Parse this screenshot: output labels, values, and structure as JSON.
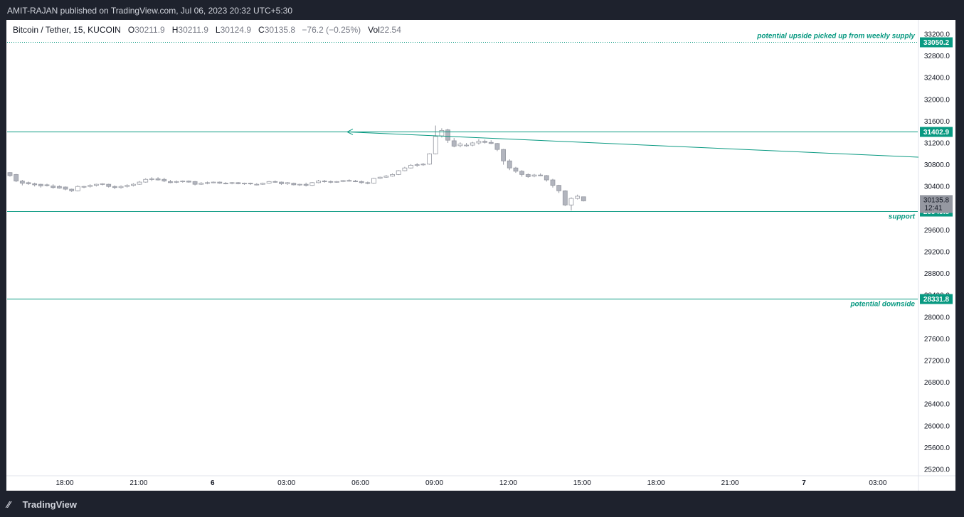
{
  "header": {
    "published": "AMIT-RAJAN published on TradingView.com, Jul 06, 2023 20:32 UTC+5:30"
  },
  "legend": {
    "symbol": "Bitcoin / Tether, 15, KUCOIN",
    "o_label": "O",
    "o_value": "30211.9",
    "h_label": "H",
    "h_value": "30211.9",
    "l_label": "L",
    "l_value": "30124.9",
    "c_label": "C",
    "c_value": "30135.8",
    "change": "−76.2 (−0.25%)",
    "vol_label": "Vol",
    "vol_value": "22.54"
  },
  "footer": {
    "brand": "TradingView"
  },
  "colors": {
    "background": "#1e222d",
    "chart_bg": "#ffffff",
    "line": "#089981",
    "candle": "#b2b5be",
    "candle_dark": "#9598a1",
    "axis_text": "#131722"
  },
  "chart_data": {
    "type": "candlestick",
    "y_range": [
      25000,
      33500
    ],
    "y_ticks": [
      "33200.0",
      "32800.0",
      "32400.0",
      "32000.0",
      "31600.0",
      "31200.0",
      "30800.0",
      "30400.0",
      "30000.0",
      "29600.0",
      "29200.0",
      "28800.0",
      "28400.0",
      "28000.0",
      "27600.0",
      "27200.0",
      "26800.0",
      "26400.0",
      "26000.0",
      "25600.0",
      "25200.0"
    ],
    "x_ticks": [
      "18:00",
      "21:00",
      "6",
      "03:00",
      "06:00",
      "09:00",
      "12:00",
      "15:00",
      "18:00",
      "21:00",
      "7",
      "03:00"
    ],
    "horizontal_levels": [
      {
        "price": 33050.2,
        "label": "33050.2",
        "annotation": "potential upside picked up from weekly supply",
        "style": "dotted"
      },
      {
        "price": 31402.9,
        "label": "31402.9",
        "annotation": "",
        "style": "solid"
      },
      {
        "price": 29949.8,
        "label": "29949.8",
        "annotation": "support",
        "style": "solid"
      },
      {
        "price": 28331.8,
        "label": "28331.8",
        "annotation": "potential downside",
        "style": "solid"
      }
    ],
    "last_price": {
      "price": 30135.8,
      "label": "30135.8",
      "countdown": "12:41"
    },
    "trendline": {
      "annotation": ""
    },
    "candles": [
      [
        30655,
        30660,
        30580,
        30600
      ],
      [
        30620,
        30630,
        30480,
        30500
      ],
      [
        30500,
        30520,
        30420,
        30460
      ],
      [
        30470,
        30490,
        30430,
        30450
      ],
      [
        30450,
        30470,
        30400,
        30430
      ],
      [
        30440,
        30450,
        30380,
        30410
      ],
      [
        30430,
        30450,
        30400,
        30420
      ],
      [
        30410,
        30440,
        30360,
        30380
      ],
      [
        30400,
        30420,
        30360,
        30370
      ],
      [
        30390,
        30400,
        30330,
        30350
      ],
      [
        30350,
        30360,
        30300,
        30320
      ],
      [
        30320,
        30420,
        30310,
        30400
      ],
      [
        30390,
        30410,
        30370,
        30400
      ],
      [
        30400,
        30440,
        30380,
        30420
      ],
      [
        30420,
        30450,
        30400,
        30440
      ],
      [
        30440,
        30460,
        30420,
        30450
      ],
      [
        30440,
        30450,
        30380,
        30400
      ],
      [
        30400,
        30420,
        30350,
        30380
      ],
      [
        30380,
        30420,
        30360,
        30400
      ],
      [
        30400,
        30440,
        30380,
        30420
      ],
      [
        30420,
        30460,
        30400,
        30440
      ],
      [
        30440,
        30500,
        30430,
        30480
      ],
      [
        30480,
        30550,
        30470,
        30530
      ],
      [
        30530,
        30570,
        30500,
        30540
      ],
      [
        30540,
        30570,
        30510,
        30520
      ],
      [
        30530,
        30560,
        30480,
        30500
      ],
      [
        30490,
        30520,
        30460,
        30470
      ],
      [
        30480,
        30510,
        30460,
        30490
      ],
      [
        30490,
        30510,
        30470,
        30500
      ],
      [
        30500,
        30510,
        30470,
        30480
      ],
      [
        30490,
        30500,
        30420,
        30440
      ],
      [
        30440,
        30480,
        30430,
        30460
      ],
      [
        30460,
        30490,
        30440,
        30470
      ],
      [
        30470,
        30490,
        30460,
        30480
      ],
      [
        30480,
        30490,
        30450,
        30460
      ],
      [
        30460,
        30480,
        30440,
        30450
      ],
      [
        30460,
        30480,
        30440,
        30470
      ],
      [
        30470,
        30480,
        30440,
        30450
      ],
      [
        30450,
        30470,
        30430,
        30460
      ],
      [
        30460,
        30470,
        30430,
        30450
      ],
      [
        30440,
        30460,
        30420,
        30440
      ],
      [
        30440,
        30470,
        30430,
        30460
      ],
      [
        30460,
        30500,
        30450,
        30490
      ],
      [
        30490,
        30510,
        30470,
        30480
      ],
      [
        30480,
        30490,
        30430,
        30450
      ],
      [
        30450,
        30480,
        30430,
        30470
      ],
      [
        30460,
        30470,
        30420,
        30430
      ],
      [
        30430,
        30450,
        30410,
        30440
      ],
      [
        30440,
        30470,
        30400,
        30420
      ],
      [
        30420,
        30480,
        30410,
        30470
      ],
      [
        30470,
        30520,
        30460,
        30500
      ],
      [
        30500,
        30520,
        30470,
        30490
      ],
      [
        30490,
        30510,
        30460,
        30480
      ],
      [
        30480,
        30500,
        30470,
        30490
      ],
      [
        30490,
        30520,
        30480,
        30510
      ],
      [
        30510,
        30530,
        30490,
        30500
      ],
      [
        30500,
        30520,
        30480,
        30490
      ],
      [
        30490,
        30510,
        30450,
        30470
      ],
      [
        30470,
        30490,
        30440,
        30460
      ],
      [
        30460,
        30560,
        30450,
        30550
      ],
      [
        30550,
        30580,
        30540,
        30570
      ],
      [
        30570,
        30610,
        30560,
        30590
      ],
      [
        30590,
        30640,
        30580,
        30620
      ],
      [
        30620,
        30700,
        30610,
        30690
      ],
      [
        30690,
        30760,
        30680,
        30740
      ],
      [
        30740,
        30810,
        30730,
        30790
      ],
      [
        30790,
        30830,
        30760,
        30800
      ],
      [
        30800,
        30830,
        30780,
        30810
      ],
      [
        30810,
        31010,
        30800,
        31000
      ],
      [
        31000,
        31520,
        30990,
        31320
      ],
      [
        31330,
        31470,
        31300,
        31430
      ],
      [
        31440,
        31460,
        31200,
        31250
      ],
      [
        31240,
        31290,
        31120,
        31140
      ],
      [
        31150,
        31210,
        31120,
        31180
      ],
      [
        31150,
        31200,
        31130,
        31160
      ],
      [
        31160,
        31220,
        31140,
        31200
      ],
      [
        31200,
        31270,
        31170,
        31230
      ],
      [
        31230,
        31260,
        31190,
        31210
      ],
      [
        31210,
        31250,
        31180,
        31190
      ],
      [
        31190,
        31200,
        31050,
        31080
      ],
      [
        31080,
        31090,
        30800,
        30870
      ],
      [
        30870,
        30900,
        30700,
        30740
      ],
      [
        30740,
        30760,
        30650,
        30680
      ],
      [
        30680,
        30700,
        30580,
        30620
      ],
      [
        30620,
        30640,
        30560,
        30580
      ],
      [
        30590,
        30630,
        30570,
        30610
      ],
      [
        30610,
        30640,
        30590,
        30600
      ],
      [
        30600,
        30610,
        30490,
        30520
      ],
      [
        30520,
        30540,
        30380,
        30420
      ],
      [
        30420,
        30430,
        30280,
        30320
      ],
      [
        30320,
        30330,
        30040,
        30060
      ],
      [
        30060,
        30200,
        29960,
        30180
      ],
      [
        30180,
        30250,
        30160,
        30220
      ],
      [
        30210,
        30210,
        30125,
        30135
      ]
    ]
  }
}
